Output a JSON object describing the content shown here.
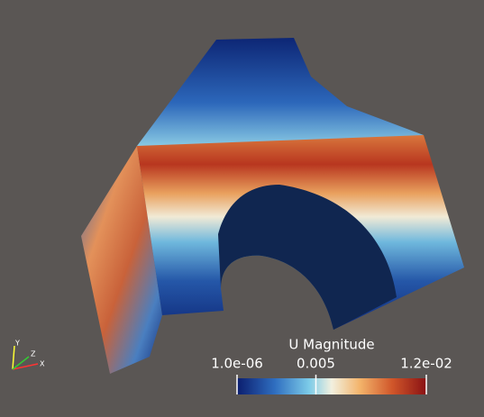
{
  "colorbar": {
    "title": "U Magnitude",
    "range": [
      1e-06,
      0.012
    ],
    "ticks": [
      {
        "value": 1e-06,
        "label": "1.0e-06"
      },
      {
        "value": 0.005,
        "label": "0.005"
      },
      {
        "value": 0.012,
        "label": "1.2e-02"
      }
    ]
  },
  "axes_triad": {
    "x": "X",
    "y": "Y",
    "z": "Z"
  }
}
